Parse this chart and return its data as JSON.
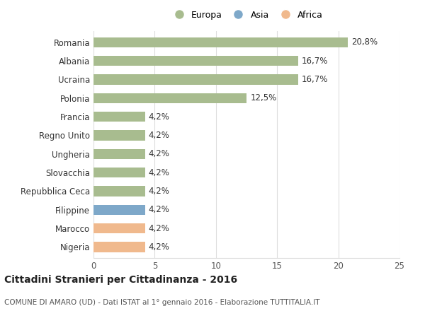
{
  "countries": [
    "Nigeria",
    "Marocco",
    "Filippine",
    "Repubblica Ceca",
    "Slovacchia",
    "Ungheria",
    "Regno Unito",
    "Francia",
    "Polonia",
    "Ucraina",
    "Albania",
    "Romania"
  ],
  "values": [
    4.2,
    4.2,
    4.2,
    4.2,
    4.2,
    4.2,
    4.2,
    4.2,
    12.5,
    16.7,
    16.7,
    20.8
  ],
  "labels": [
    "4,2%",
    "4,2%",
    "4,2%",
    "4,2%",
    "4,2%",
    "4,2%",
    "4,2%",
    "4,2%",
    "12,5%",
    "16,7%",
    "16,7%",
    "20,8%"
  ],
  "colors": [
    "#f0b98d",
    "#f0b98d",
    "#7ea8c9",
    "#a8bc8f",
    "#a8bc8f",
    "#a8bc8f",
    "#a8bc8f",
    "#a8bc8f",
    "#a8bc8f",
    "#a8bc8f",
    "#a8bc8f",
    "#a8bc8f"
  ],
  "continent": [
    "Africa",
    "Africa",
    "Asia",
    "Europa",
    "Europa",
    "Europa",
    "Europa",
    "Europa",
    "Europa",
    "Europa",
    "Europa",
    "Europa"
  ],
  "europa_color": "#a8bc8f",
  "asia_color": "#7ea8c9",
  "africa_color": "#f0b98d",
  "xlim": [
    0,
    25
  ],
  "xticks": [
    0,
    5,
    10,
    15,
    20,
    25
  ],
  "title": "Cittadini Stranieri per Cittadinanza - 2016",
  "subtitle": "COMUNE DI AMARO (UD) - Dati ISTAT al 1° gennaio 2016 - Elaborazione TUTTITALIA.IT",
  "background_color": "#ffffff",
  "bar_height": 0.55,
  "grid_color": "#dddddd",
  "label_fontsize": 8.5,
  "tick_fontsize": 8.5
}
